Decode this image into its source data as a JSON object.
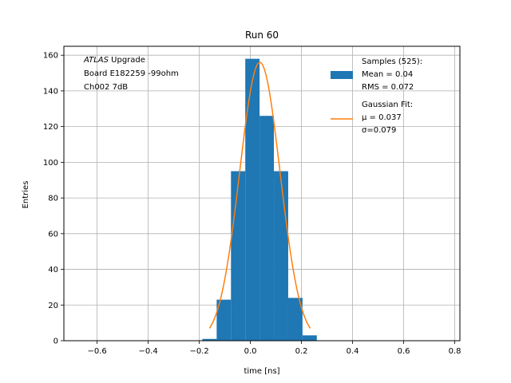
{
  "chart_data": {
    "type": "bar",
    "title": "Run 60",
    "xlabel": "time [ns]",
    "ylabel": "Entries",
    "xlim": [
      -0.73,
      0.82
    ],
    "ylim": [
      0,
      165
    ],
    "xticks": [
      -0.6,
      -0.4,
      -0.2,
      0.0,
      0.2,
      0.4,
      0.6,
      0.8
    ],
    "xtick_labels": [
      "−0.6",
      "−0.4",
      "−0.2",
      "0.0",
      "0.2",
      "0.4",
      "0.6",
      "0.8"
    ],
    "yticks": [
      0,
      20,
      40,
      60,
      80,
      100,
      120,
      140,
      160
    ],
    "ytick_labels": [
      "0",
      "20",
      "40",
      "60",
      "80",
      "100",
      "120",
      "140",
      "160"
    ],
    "grid": true,
    "histogram": {
      "name": "Samples (525):",
      "color": "#1f77b4",
      "bin_edges": [
        -0.188,
        -0.132,
        -0.076,
        -0.02,
        0.036,
        0.092,
        0.148,
        0.204,
        0.26
      ],
      "counts": [
        1,
        23,
        95,
        158,
        126,
        95,
        24,
        3
      ]
    },
    "fit": {
      "name": "Gaussian Fit:",
      "color": "#ff7f0e",
      "mu": 0.037,
      "sigma": 0.079,
      "amplitude": 156,
      "x_range": [
        -0.16,
        0.234
      ]
    },
    "legend": {
      "location": "upper right",
      "entries": [
        {
          "lines": [
            "Samples (525):",
            " Mean = 0.04",
            " RMS = 0.072"
          ]
        },
        {
          "lines": [
            "Gaussian Fit:",
            " μ = 0.037",
            " σ=0.079"
          ]
        }
      ]
    },
    "annotation": {
      "lines": [
        {
          "italic": "ATLAS",
          "rest": " Upgrade"
        },
        {
          "italic": "",
          "rest": " Board E182259 -99ohm"
        },
        {
          "italic": "",
          "rest": " Ch002 7dB"
        }
      ]
    }
  }
}
